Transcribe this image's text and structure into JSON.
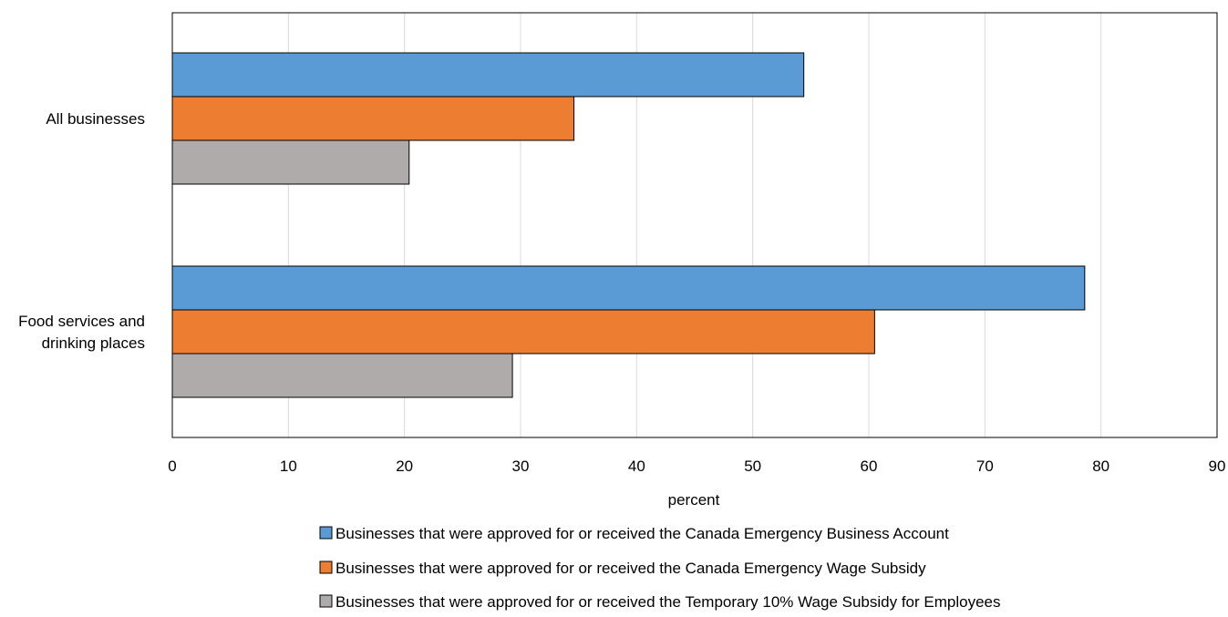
{
  "chart_data": {
    "type": "bar",
    "orientation": "horizontal",
    "categories": [
      "All businesses",
      "Food services and drinking places"
    ],
    "category_lines": [
      [
        "All businesses"
      ],
      [
        "Food services and",
        "drinking places"
      ]
    ],
    "series": [
      {
        "name": "Businesses that were approved for or received the Canada Emergency Business Account",
        "values": [
          54.4,
          78.6
        ],
        "color": "#5b9bd5"
      },
      {
        "name": "Businesses that were approved for or received the Canada Emergency Wage Subsidy",
        "values": [
          34.6,
          60.5
        ],
        "color": "#ed7d31"
      },
      {
        "name": "Businesses that were approved for or received the Temporary 10% Wage Subsidy for Employees",
        "values": [
          20.4,
          29.3
        ],
        "color": "#afabab"
      }
    ],
    "xlabel": "percent",
    "ylabel": "",
    "xlim": [
      0,
      90
    ],
    "xticks": [
      "0",
      "10",
      "20",
      "30",
      "40",
      "50",
      "60",
      "70",
      "80",
      "90"
    ],
    "grid": true,
    "legend_position": "bottom"
  }
}
